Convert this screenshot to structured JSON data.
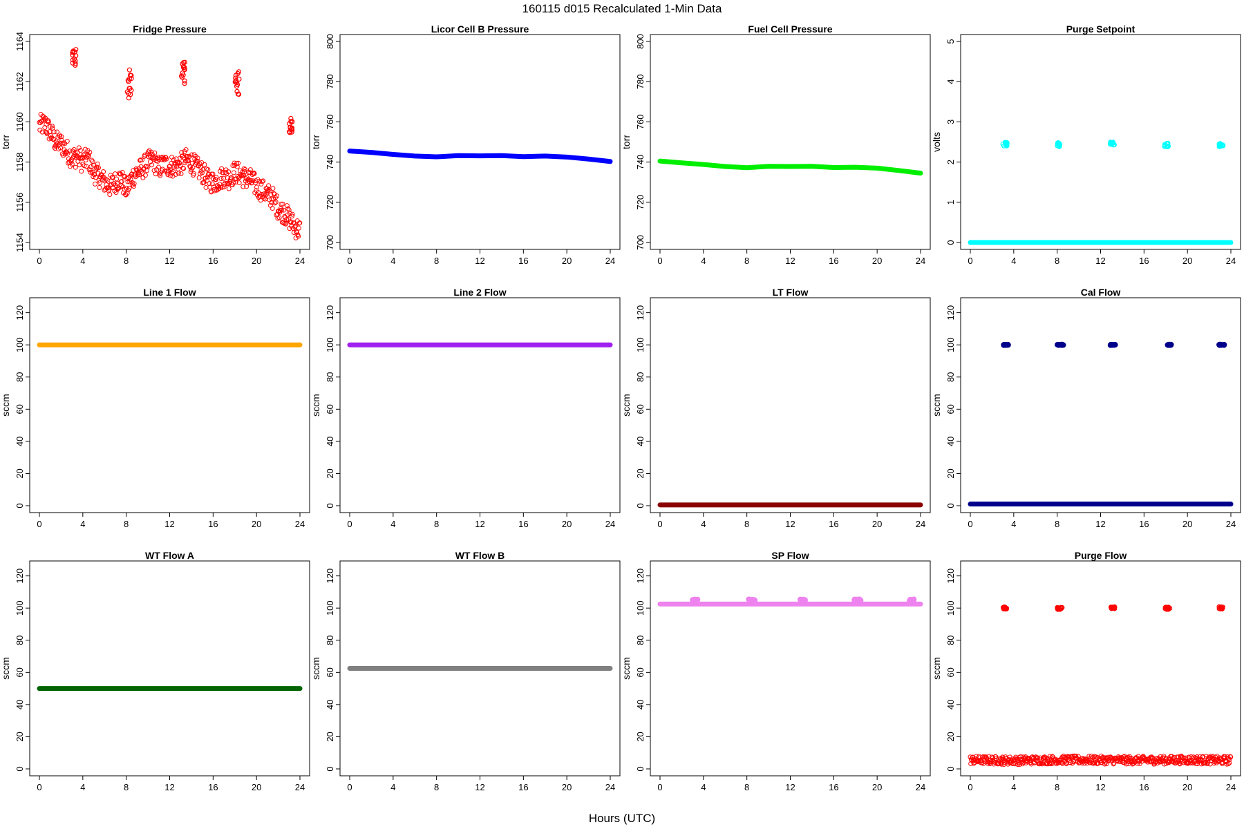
{
  "title": "160115   d015   Recalculated 1-Min Data",
  "xlabel": "Hours (UTC)",
  "chart_data": [
    {
      "type": "scatter",
      "title": "Fridge Pressure",
      "ylabel": "torr",
      "xlim": [
        0,
        24
      ],
      "ylim": [
        1154,
        1164
      ],
      "yticks": [
        1154,
        1156,
        1158,
        1160,
        1162,
        1164
      ],
      "xticks": [
        0,
        4,
        8,
        12,
        16,
        20,
        24
      ],
      "color": "#ff0000",
      "marker": "open-circle",
      "series": [
        {
          "values": [
            [
              0,
              1159.8
            ],
            [
              0.5,
              1159.9
            ],
            [
              1,
              1159.5
            ],
            [
              1.5,
              1159.0
            ],
            [
              2,
              1158.9
            ],
            [
              2.5,
              1158.6
            ],
            [
              3,
              1158.2
            ],
            [
              3.5,
              1158.3
            ],
            [
              4,
              1158.0
            ],
            [
              4.5,
              1158.2
            ],
            [
              5,
              1157.5
            ],
            [
              5.5,
              1157.3
            ],
            [
              6,
              1157.0
            ],
            [
              6.5,
              1156.8
            ],
            [
              7,
              1157.0
            ],
            [
              7.5,
              1157.2
            ],
            [
              8,
              1156.6
            ],
            [
              8.5,
              1157.2
            ],
            [
              9,
              1157.5
            ],
            [
              9.5,
              1157.7
            ],
            [
              10,
              1158.0
            ],
            [
              10.5,
              1158.1
            ],
            [
              11,
              1157.7
            ],
            [
              11.5,
              1157.9
            ],
            [
              12,
              1157.8
            ],
            [
              12.5,
              1157.8
            ],
            [
              13,
              1157.9
            ],
            [
              13.5,
              1158.1
            ],
            [
              14,
              1158.0
            ],
            [
              14.5,
              1157.7
            ],
            [
              15,
              1157.5
            ],
            [
              15.5,
              1157.1
            ],
            [
              16,
              1157.0
            ],
            [
              16.5,
              1157.1
            ],
            [
              17,
              1157.3
            ],
            [
              17.5,
              1157.2
            ],
            [
              18,
              1157.5
            ],
            [
              18.5,
              1157.4
            ],
            [
              19,
              1157.2
            ],
            [
              19.5,
              1157.1
            ],
            [
              20,
              1156.8
            ],
            [
              20.5,
              1156.6
            ],
            [
              21,
              1156.4
            ],
            [
              21.5,
              1156.2
            ],
            [
              22,
              1155.7
            ],
            [
              22.5,
              1155.5
            ],
            [
              23,
              1155.2
            ],
            [
              23.5,
              1154.8
            ],
            [
              24,
              1154.6
            ]
          ]
        }
      ],
      "spikes": [
        {
          "x": [
            3.0,
            3.4
          ],
          "y": [
            1162.8,
            1163.6
          ]
        },
        {
          "x": [
            8.1,
            8.5
          ],
          "y": [
            1161.0,
            1162.6
          ]
        },
        {
          "x": [
            13.0,
            13.4
          ],
          "y": [
            1161.9,
            1163.0
          ]
        },
        {
          "x": [
            18.0,
            18.4
          ],
          "y": [
            1161.3,
            1162.6
          ]
        },
        {
          "x": [
            23.0,
            23.3
          ],
          "y": [
            1159.4,
            1160.2
          ]
        }
      ]
    },
    {
      "type": "line",
      "title": "Licor Cell B Pressure",
      "ylabel": "torr",
      "xlim": [
        0,
        24
      ],
      "ylim": [
        700,
        800
      ],
      "yticks": [
        700,
        720,
        740,
        760,
        780,
        800
      ],
      "xticks": [
        0,
        4,
        8,
        12,
        16,
        20,
        24
      ],
      "color": "#0000ff",
      "series": [
        {
          "values": [
            [
              0,
              745.5
            ],
            [
              2,
              744.8
            ],
            [
              4,
              743.8
            ],
            [
              6,
              743.0
            ],
            [
              8,
              742.6
            ],
            [
              10,
              743.2
            ],
            [
              12,
              743.1
            ],
            [
              14,
              743.2
            ],
            [
              16,
              742.7
            ],
            [
              18,
              743.0
            ],
            [
              20,
              742.5
            ],
            [
              22,
              741.5
            ],
            [
              24,
              740.3
            ]
          ]
        }
      ]
    },
    {
      "type": "line",
      "title": "Fuel Cell Pressure",
      "ylabel": "torr",
      "xlim": [
        0,
        24
      ],
      "ylim": [
        700,
        800
      ],
      "yticks": [
        700,
        720,
        740,
        760,
        780,
        800
      ],
      "xticks": [
        0,
        4,
        8,
        12,
        16,
        20,
        24
      ],
      "color": "#00ee00",
      "series": [
        {
          "values": [
            [
              0,
              740.5
            ],
            [
              2,
              739.6
            ],
            [
              4,
              738.8
            ],
            [
              6,
              737.8
            ],
            [
              8,
              737.2
            ],
            [
              10,
              737.9
            ],
            [
              12,
              737.8
            ],
            [
              14,
              737.9
            ],
            [
              16,
              737.3
            ],
            [
              18,
              737.4
            ],
            [
              20,
              737.0
            ],
            [
              22,
              735.8
            ],
            [
              24,
              734.5
            ]
          ]
        }
      ]
    },
    {
      "type": "scatter",
      "title": "Purge Setpoint",
      "ylabel": "volts",
      "xlim": [
        0,
        24
      ],
      "ylim": [
        0,
        5
      ],
      "yticks": [
        0,
        1,
        2,
        3,
        4,
        5
      ],
      "xticks": [
        0,
        4,
        8,
        12,
        16,
        20,
        24
      ],
      "color": "#00ffff",
      "series": [
        {
          "values": [
            [
              0,
              0
            ],
            [
              24,
              0
            ]
          ]
        }
      ],
      "spikes": [
        {
          "x": [
            3.0,
            3.4
          ],
          "y": [
            2.4,
            2.5
          ]
        },
        {
          "x": [
            8.0,
            8.4
          ],
          "y": [
            2.38,
            2.5
          ]
        },
        {
          "x": [
            12.9,
            13.3
          ],
          "y": [
            2.42,
            2.5
          ]
        },
        {
          "x": [
            17.9,
            18.3
          ],
          "y": [
            2.38,
            2.48
          ]
        },
        {
          "x": [
            22.9,
            23.3
          ],
          "y": [
            2.38,
            2.47
          ]
        }
      ]
    },
    {
      "type": "line",
      "title": "Line 1 Flow",
      "ylabel": "sccm",
      "xlim": [
        0,
        24
      ],
      "ylim": [
        0,
        125
      ],
      "yticks": [
        0,
        20,
        40,
        60,
        80,
        100,
        120
      ],
      "xticks": [
        0,
        4,
        8,
        12,
        16,
        20,
        24
      ],
      "color": "#ffa500",
      "series": [
        {
          "values": [
            [
              0,
              100
            ],
            [
              24,
              100
            ]
          ]
        }
      ]
    },
    {
      "type": "line",
      "title": "Line 2 Flow",
      "ylabel": "sccm",
      "xlim": [
        0,
        24
      ],
      "ylim": [
        0,
        125
      ],
      "yticks": [
        0,
        20,
        40,
        60,
        80,
        100,
        120
      ],
      "xticks": [
        0,
        4,
        8,
        12,
        16,
        20,
        24
      ],
      "color": "#a020f0",
      "series": [
        {
          "values": [
            [
              0,
              100
            ],
            [
              24,
              100
            ]
          ]
        }
      ]
    },
    {
      "type": "line",
      "title": "LT Flow",
      "ylabel": "sccm",
      "xlim": [
        0,
        24
      ],
      "ylim": [
        0,
        125
      ],
      "yticks": [
        0,
        20,
        40,
        60,
        80,
        100,
        120
      ],
      "xticks": [
        0,
        4,
        8,
        12,
        16,
        20,
        24
      ],
      "color": "#8b0000",
      "series": [
        {
          "values": [
            [
              0,
              0.5
            ],
            [
              24,
              0.5
            ]
          ]
        }
      ]
    },
    {
      "type": "line",
      "title": "Cal Flow",
      "ylabel": "sccm",
      "xlim": [
        0,
        24
      ],
      "ylim": [
        0,
        125
      ],
      "yticks": [
        0,
        20,
        40,
        60,
        80,
        100,
        120
      ],
      "xticks": [
        0,
        4,
        8,
        12,
        16,
        20,
        24
      ],
      "color": "#00008b",
      "series": [
        {
          "values": [
            [
              0,
              1
            ],
            [
              24,
              1
            ]
          ]
        }
      ],
      "spikes": [
        {
          "x": [
            3.0,
            3.5
          ],
          "y": [
            99.8,
            100.2
          ]
        },
        {
          "x": [
            8.0,
            8.6
          ],
          "y": [
            99.8,
            100.2
          ]
        },
        {
          "x": [
            12.9,
            13.4
          ],
          "y": [
            99.8,
            100.2
          ]
        },
        {
          "x": [
            17.9,
            18.5
          ],
          "y": [
            99.8,
            100.2
          ]
        },
        {
          "x": [
            22.9,
            23.4
          ],
          "y": [
            99.8,
            100.2
          ]
        }
      ]
    },
    {
      "type": "line",
      "title": "WT Flow A",
      "ylabel": "sccm",
      "xlim": [
        0,
        24
      ],
      "ylim": [
        0,
        125
      ],
      "yticks": [
        0,
        20,
        40,
        60,
        80,
        100,
        120
      ],
      "xticks": [
        0,
        4,
        8,
        12,
        16,
        20,
        24
      ],
      "color": "#006400",
      "series": [
        {
          "values": [
            [
              0,
              50
            ],
            [
              24,
              50
            ]
          ]
        }
      ]
    },
    {
      "type": "line",
      "title": "WT Flow B",
      "ylabel": "sccm",
      "xlim": [
        0,
        24
      ],
      "ylim": [
        0,
        125
      ],
      "yticks": [
        0,
        20,
        40,
        60,
        80,
        100,
        120
      ],
      "xticks": [
        0,
        4,
        8,
        12,
        16,
        20,
        24
      ],
      "color": "#808080",
      "series": [
        {
          "values": [
            [
              0,
              62.5
            ],
            [
              24,
              62.5
            ]
          ]
        }
      ]
    },
    {
      "type": "line",
      "title": "SP Flow",
      "ylabel": "sccm",
      "xlim": [
        0,
        24
      ],
      "ylim": [
        0,
        125
      ],
      "yticks": [
        0,
        20,
        40,
        60,
        80,
        100,
        120
      ],
      "xticks": [
        0,
        4,
        8,
        12,
        16,
        20,
        24
      ],
      "color": "#ee82ee",
      "series": [
        {
          "values": [
            [
              0,
              102.5
            ],
            [
              24,
              102.5
            ]
          ]
        }
      ],
      "spikes": [
        {
          "x": [
            3.0,
            3.5
          ],
          "y": [
            104.5,
            105.5
          ]
        },
        {
          "x": [
            8.0,
            8.8
          ],
          "y": [
            104.5,
            105.5
          ]
        },
        {
          "x": [
            12.9,
            13.4
          ],
          "y": [
            104.5,
            105.5
          ]
        },
        {
          "x": [
            17.9,
            18.7
          ],
          "y": [
            104.5,
            105.5
          ]
        },
        {
          "x": [
            22.9,
            23.4
          ],
          "y": [
            104.5,
            105.5
          ]
        }
      ]
    },
    {
      "type": "scatter",
      "title": "Purge Flow",
      "ylabel": "sccm",
      "xlim": [
        0,
        24
      ],
      "ylim": [
        0,
        125
      ],
      "yticks": [
        0,
        20,
        40,
        60,
        80,
        100,
        120
      ],
      "xticks": [
        0,
        4,
        8,
        12,
        16,
        20,
        24
      ],
      "color": "#ff0000",
      "marker": "open-circle",
      "series": [
        {
          "values": [
            [
              0,
              5.5
            ],
            [
              4,
              5.2
            ],
            [
              8,
              5.6
            ],
            [
              12,
              5.5
            ],
            [
              16,
              5.4
            ],
            [
              20,
              5.6
            ],
            [
              24,
              5.3
            ]
          ]
        }
      ],
      "spikes": [
        {
          "x": [
            3.0,
            3.4
          ],
          "y": [
            99.3,
            100.7
          ]
        },
        {
          "x": [
            8.0,
            8.5
          ],
          "y": [
            99.2,
            100.5
          ]
        },
        {
          "x": [
            12.9,
            13.3
          ],
          "y": [
            99.5,
            101
          ]
        },
        {
          "x": [
            17.9,
            18.4
          ],
          "y": [
            99.2,
            100.6
          ]
        },
        {
          "x": [
            22.9,
            23.3
          ],
          "y": [
            99.4,
            100.8
          ]
        }
      ]
    }
  ]
}
